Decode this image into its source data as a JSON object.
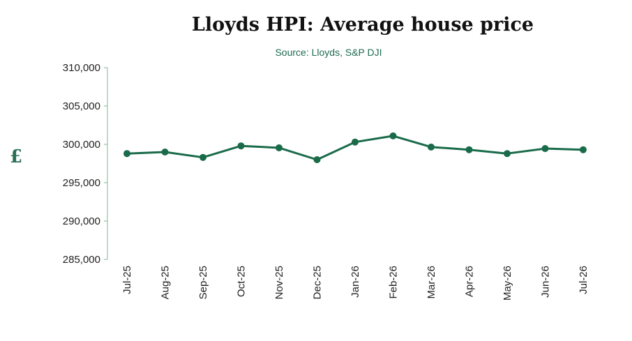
{
  "chart_data": {
    "type": "line",
    "title": "Lloyds HPI: Average house price",
    "subtitle": "Source: Lloyds, S&P DJI",
    "ylabel": "£",
    "xlabel": "",
    "categories": [
      "Jul-25",
      "Aug-25",
      "Sep-25",
      "Oct-25",
      "Nov-25",
      "Dec-25",
      "Jan-26",
      "Feb-26",
      "Mar-26",
      "Apr-26",
      "May-26",
      "Jun-26",
      "Jul-26"
    ],
    "series": [
      {
        "values": [
          298800,
          299000,
          298300,
          299800,
          299550,
          298000,
          300300,
          301100,
          299650,
          299300,
          298800,
          299450,
          299300
        ]
      }
    ],
    "ylim": [
      285000,
      310000
    ],
    "yticks": [
      285000,
      290000,
      295000,
      300000,
      305000,
      310000
    ],
    "ytick_labels": [
      "285,000",
      "290,000",
      "295,000",
      "300,000",
      "305,000",
      "310,000"
    ],
    "grid": false,
    "legend": "none",
    "colors": {
      "line": "#1a6b4a",
      "axis": "#7fb59a",
      "subtitle": "#1f6b4f",
      "ylabel": "#2a6f53"
    }
  }
}
